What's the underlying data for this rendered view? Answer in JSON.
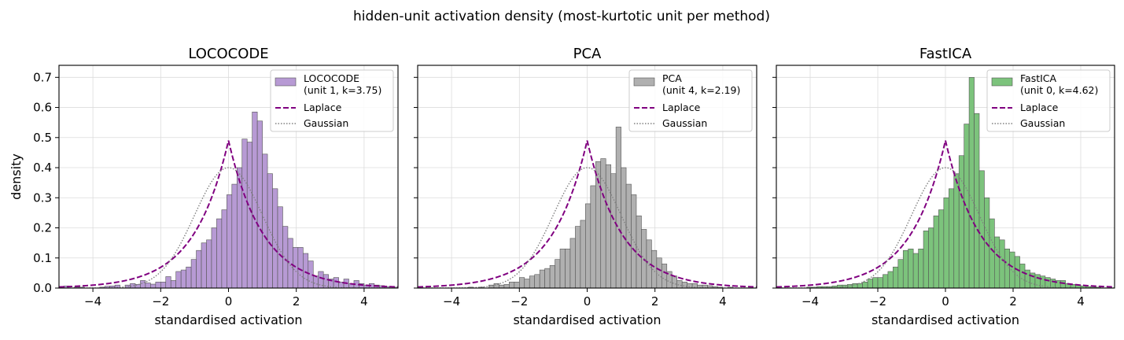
{
  "suptitle": "hidden-unit activation density (most-kurtotic unit per method)",
  "chart_data": [
    {
      "type": "bar",
      "title": "LOCOCODE",
      "xlabel": "standardised activation",
      "ylabel": "density",
      "xlim": [
        -5,
        5
      ],
      "ylim": [
        0,
        0.74
      ],
      "xticks": [
        -4,
        -2,
        0,
        2,
        4
      ],
      "yticks": [
        0.0,
        0.1,
        0.2,
        0.3,
        0.4,
        0.5,
        0.6,
        0.7
      ],
      "grid": true,
      "legend_position": "top-right",
      "histogram": {
        "name_line1": "LOCOCODE",
        "name_line2": "(unit 1, k=3.75)",
        "color": "#b79ad4",
        "edge_color": "#555555",
        "bin_start": -5.0,
        "bin_width": 0.15,
        "density": [
          0.0,
          0.007,
          0.0,
          0.003,
          0.003,
          0.0,
          0.0,
          0.0,
          0.003,
          0.006,
          0.007,
          0.01,
          0.0,
          0.01,
          0.015,
          0.012,
          0.025,
          0.017,
          0.013,
          0.02,
          0.02,
          0.038,
          0.025,
          0.055,
          0.06,
          0.07,
          0.095,
          0.125,
          0.15,
          0.16,
          0.2,
          0.23,
          0.26,
          0.31,
          0.345,
          0.4,
          0.495,
          0.485,
          0.585,
          0.555,
          0.445,
          0.38,
          0.33,
          0.27,
          0.205,
          0.165,
          0.135,
          0.135,
          0.115,
          0.09,
          0.04,
          0.055,
          0.045,
          0.03,
          0.035,
          0.02,
          0.03,
          0.015,
          0.025,
          0.015,
          0.01,
          0.015,
          0.01,
          0.008,
          0.005,
          0.0,
          0.003
        ]
      },
      "curves": [
        {
          "name": "Laplace",
          "color": "#800080",
          "style": "dashed",
          "peak_density": 0.49
        },
        {
          "name": "Gaussian",
          "color": "#808080",
          "style": "dotted",
          "peak_density": 0.4
        }
      ]
    },
    {
      "type": "bar",
      "title": "PCA",
      "xlabel": "standardised activation",
      "xlim": [
        -5,
        5
      ],
      "ylim": [
        0,
        0.74
      ],
      "xticks": [
        -4,
        -2,
        0,
        2,
        4
      ],
      "grid": true,
      "legend_position": "top-right",
      "histogram": {
        "name_line1": "PCA",
        "name_line2": "(unit 4, k=2.19)",
        "color": "#b0b0b0",
        "edge_color": "#555555",
        "bin_start": -5.0,
        "bin_width": 0.15,
        "density": [
          0.0,
          0.0,
          0.0,
          0.0,
          0.0,
          0.0,
          0.0,
          0.0,
          0.0,
          0.0,
          0.003,
          0.0,
          0.003,
          0.0,
          0.01,
          0.015,
          0.01,
          0.012,
          0.02,
          0.02,
          0.035,
          0.03,
          0.04,
          0.045,
          0.06,
          0.065,
          0.075,
          0.095,
          0.13,
          0.13,
          0.165,
          0.205,
          0.225,
          0.28,
          0.34,
          0.42,
          0.43,
          0.41,
          0.38,
          0.535,
          0.4,
          0.345,
          0.31,
          0.24,
          0.195,
          0.16,
          0.125,
          0.1,
          0.08,
          0.055,
          0.04,
          0.025,
          0.02,
          0.015,
          0.015,
          0.01,
          0.01,
          0.008,
          0.005,
          0.003,
          0.0,
          0.003,
          0.0,
          0.0,
          0.0,
          0.0,
          0.0
        ]
      },
      "curves": [
        {
          "name": "Laplace",
          "color": "#800080",
          "style": "dashed",
          "peak_density": 0.49
        },
        {
          "name": "Gaussian",
          "color": "#808080",
          "style": "dotted",
          "peak_density": 0.4
        }
      ]
    },
    {
      "type": "bar",
      "title": "FastICA",
      "xlabel": "standardised activation",
      "xlim": [
        -5,
        5
      ],
      "ylim": [
        0,
        0.74
      ],
      "xticks": [
        -4,
        -2,
        0,
        2,
        4
      ],
      "grid": true,
      "legend_position": "top-right",
      "histogram": {
        "name_line1": "FastICA",
        "name_line2": "(unit 0, k=4.62)",
        "color": "#7cc37c",
        "edge_color": "#555555",
        "bin_start": -5.0,
        "bin_width": 0.15,
        "density": [
          0.0,
          0.0,
          0.0,
          0.0,
          0.0,
          0.0,
          0.003,
          0.003,
          0.005,
          0.005,
          0.005,
          0.007,
          0.01,
          0.01,
          0.012,
          0.015,
          0.015,
          0.02,
          0.03,
          0.035,
          0.035,
          0.045,
          0.055,
          0.07,
          0.095,
          0.125,
          0.13,
          0.115,
          0.13,
          0.19,
          0.2,
          0.24,
          0.26,
          0.3,
          0.33,
          0.38,
          0.44,
          0.545,
          0.7,
          0.58,
          0.39,
          0.3,
          0.23,
          0.17,
          0.16,
          0.13,
          0.12,
          0.105,
          0.08,
          0.06,
          0.05,
          0.045,
          0.04,
          0.035,
          0.03,
          0.025,
          0.025,
          0.015,
          0.012,
          0.01,
          0.007,
          0.005,
          0.003,
          0.003,
          0.0,
          0.0,
          0.0
        ]
      },
      "curves": [
        {
          "name": "Laplace",
          "color": "#800080",
          "style": "dashed",
          "peak_density": 0.49
        },
        {
          "name": "Gaussian",
          "color": "#808080",
          "style": "dotted",
          "peak_density": 0.4
        }
      ]
    }
  ]
}
